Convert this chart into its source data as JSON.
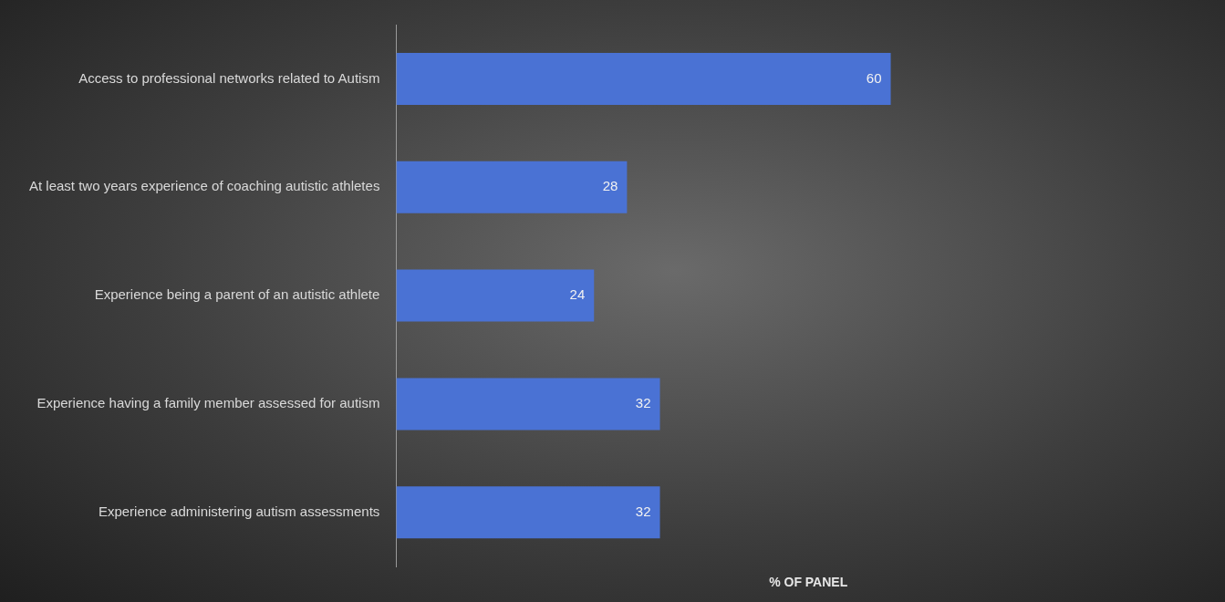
{
  "chart_data": {
    "type": "bar",
    "orientation": "horizontal",
    "xlabel": "% OF PANEL",
    "categories": [
      "Access to professional networks related to Autism",
      "At least two years experience of coaching autistic athletes",
      "Experience being a parent of an autistic athlete",
      "Experience having a family member assessed for autism",
      "Experience administering autism assessments"
    ],
    "values": [
      60,
      28,
      24,
      32,
      32
    ],
    "color": "#4a72d4",
    "data_labels": true,
    "xlim": [
      0,
      100
    ],
    "grid": false,
    "legend": false,
    "tick_labels": "y"
  }
}
